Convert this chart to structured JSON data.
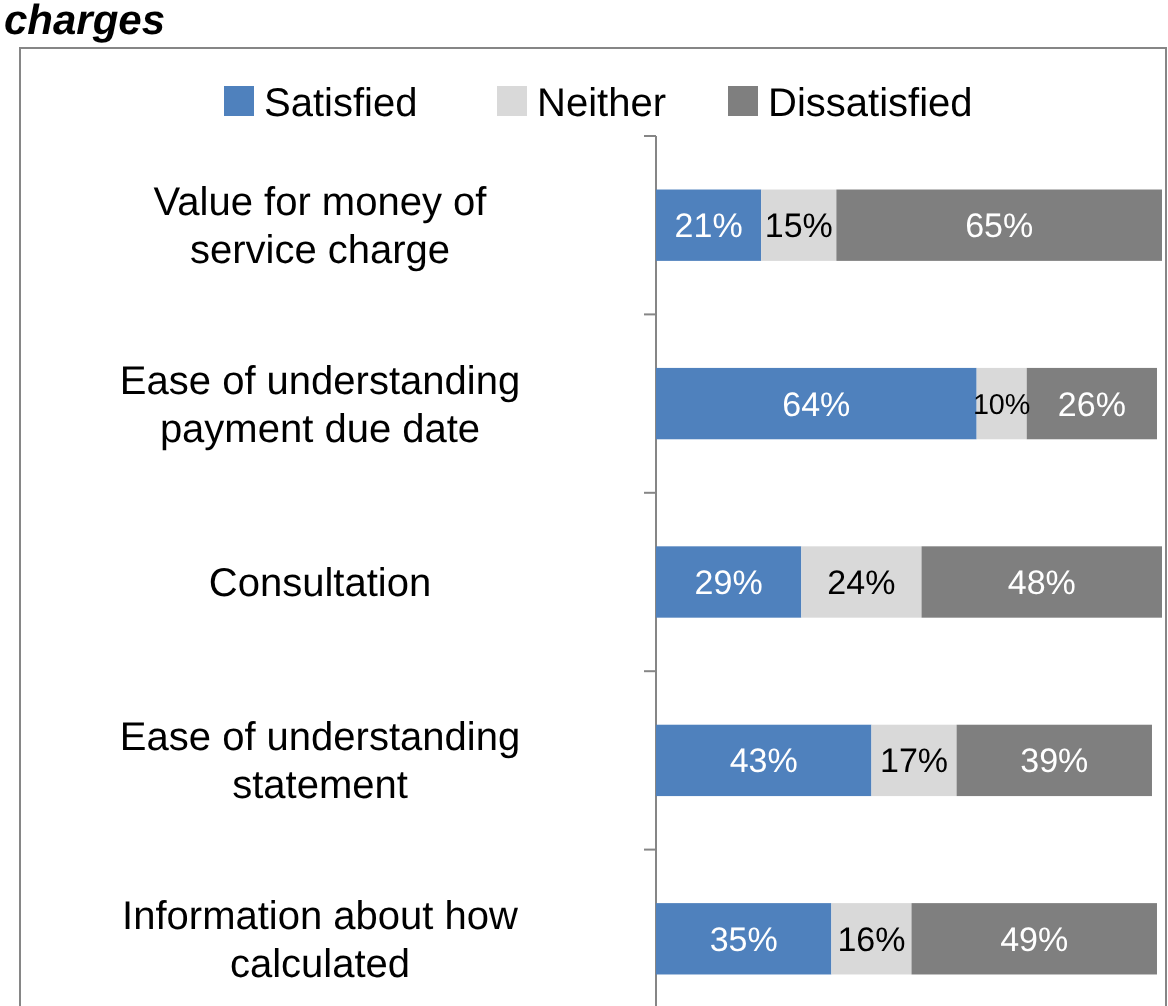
{
  "chart_data": {
    "type": "bar",
    "orientation": "horizontal",
    "stacked": true,
    "title": "charges",
    "categories": [
      "Value for money of service charge",
      "Ease of understanding payment due date",
      "Consultation",
      "Ease of understanding statement",
      "Information about how calculated"
    ],
    "series": [
      {
        "name": "Satisfied",
        "color": "#4f81bd",
        "values": [
          21,
          64,
          29,
          43,
          35
        ],
        "value_labels": [
          "21%",
          "64%",
          "29%",
          "43%",
          "35%"
        ]
      },
      {
        "name": "Neither",
        "color": "#d9d9d9",
        "values": [
          15,
          10,
          24,
          17,
          16
        ],
        "value_labels": [
          "15%",
          "10%",
          "24%",
          "17%",
          "16%"
        ]
      },
      {
        "name": "Dissatisfied",
        "color": "#7f7f7f",
        "values": [
          65,
          26,
          48,
          39,
          49
        ],
        "value_labels": [
          "65%",
          "26%",
          "48%",
          "39%",
          "49%"
        ]
      }
    ],
    "legend": "top"
  }
}
